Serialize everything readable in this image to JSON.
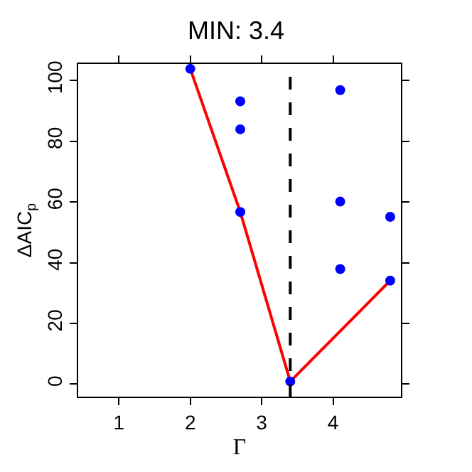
{
  "chart_data": {
    "type": "scatter",
    "title": "MIN: 3.4",
    "xlabel": "Γ",
    "ylabel": "ΔAIC$_{p}$",
    "series": [
      {
        "color": "#0000ff",
        "marker": "circle",
        "x": [
          2,
          2.7,
          2.7,
          2.7,
          3.4,
          4.1,
          4.1,
          4.1,
          4.8,
          4.8
        ],
        "values": [
          103.8,
          93.1,
          83.9,
          56.7,
          0.9,
          96.8,
          60.1,
          37.9,
          55.1,
          34.1
        ]
      },
      {
        "type": "line",
        "color": "#ff0000",
        "marker": "none",
        "x": [
          2,
          2.7,
          3.4,
          4.8
        ],
        "values": [
          103.8,
          56.7,
          0.9,
          34.1
        ]
      }
    ],
    "ref_lines": [
      {
        "axis": "x",
        "value": 3.4,
        "color": "#000000",
        "line_style": "dashed"
      }
    ],
    "xlim": [
      0.43,
      4.95
    ],
    "ylim": [
      -4.1,
      105.4
    ],
    "xticks": [
      1,
      2,
      3,
      4
    ],
    "yticks": [
      0,
      20,
      40,
      60,
      80,
      100
    ]
  }
}
